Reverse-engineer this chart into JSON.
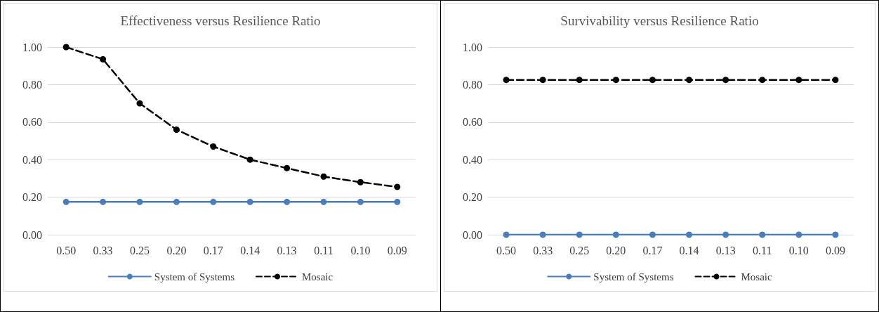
{
  "chart_data": [
    {
      "type": "line",
      "title": "Effectiveness versus Resilience Ratio",
      "categories": [
        "0.50",
        "0.33",
        "0.25",
        "0.20",
        "0.17",
        "0.14",
        "0.13",
        "0.11",
        "0.10",
        "0.09"
      ],
      "series": [
        {
          "name": "System of Systems",
          "color": "#4a7ebb",
          "line_style": "solid",
          "values": [
            0.175,
            0.175,
            0.175,
            0.175,
            0.175,
            0.175,
            0.175,
            0.175,
            0.175,
            0.175
          ]
        },
        {
          "name": "Mosaic",
          "color": "#000000",
          "line_style": "dashed",
          "values": [
            1.0,
            0.935,
            0.7,
            0.56,
            0.47,
            0.4,
            0.355,
            0.31,
            0.28,
            0.255
          ]
        }
      ],
      "ylim": [
        0,
        1
      ],
      "yticks": [
        {
          "value": 0,
          "label": "0.00"
        },
        {
          "value": 0.2,
          "label": "0.20"
        },
        {
          "value": 0.4,
          "label": "0.40"
        },
        {
          "value": 0.6,
          "label": "0.60"
        },
        {
          "value": 0.8,
          "label": "0.80"
        },
        {
          "value": 1,
          "label": "1.00"
        }
      ],
      "grid": "y",
      "legend": "bottom",
      "marker": "circle"
    },
    {
      "type": "line",
      "title": "Survivability versus Resilience Ratio",
      "categories": [
        "0.50",
        "0.33",
        "0.25",
        "0.20",
        "0.17",
        "0.14",
        "0.13",
        "0.11",
        "0.10",
        "0.09"
      ],
      "series": [
        {
          "name": "System of Systems",
          "color": "#4a7ebb",
          "line_style": "solid",
          "values": [
            0,
            0,
            0,
            0,
            0,
            0,
            0,
            0,
            0,
            0
          ]
        },
        {
          "name": "Mosaic",
          "color": "#000000",
          "line_style": "dashed",
          "values": [
            0.825,
            0.825,
            0.825,
            0.825,
            0.825,
            0.825,
            0.825,
            0.825,
            0.825,
            0.825
          ]
        }
      ],
      "ylim": [
        0,
        1
      ],
      "yticks": [
        {
          "value": 0,
          "label": "0.00"
        },
        {
          "value": 0.2,
          "label": "0.20"
        },
        {
          "value": 0.4,
          "label": "0.40"
        },
        {
          "value": 0.6,
          "label": "0.60"
        },
        {
          "value": 0.8,
          "label": "0.80"
        },
        {
          "value": 1,
          "label": "1.00"
        }
      ],
      "grid": "y",
      "legend": "bottom",
      "marker": "circle"
    }
  ]
}
